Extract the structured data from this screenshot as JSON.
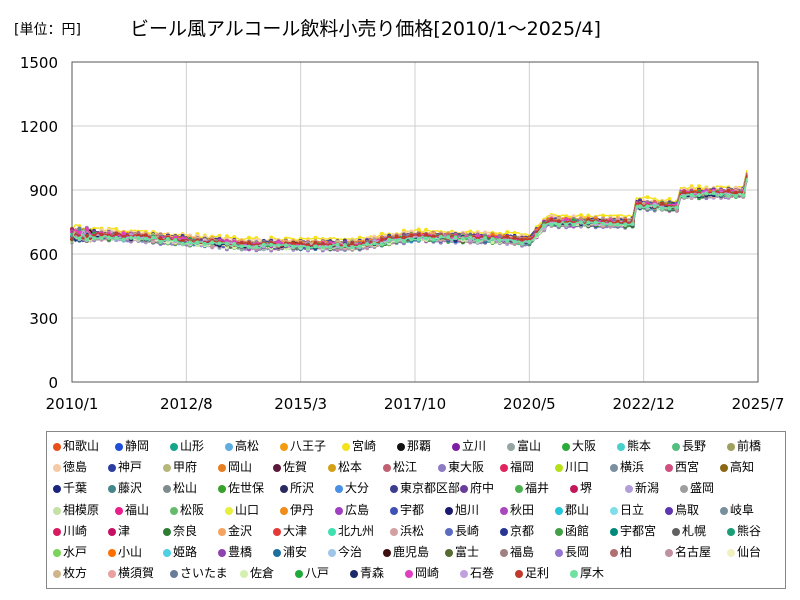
{
  "unit_label": "[単位：円]",
  "chart_title": "ビール風アルコール飲料小売り価格[2010/1～2025/4]",
  "chart_data": {
    "type": "line",
    "title": "ビール風アルコール飲料小売り価格[2010/1～2025/4]",
    "unit": "円",
    "xlabel": "",
    "ylabel": "",
    "x_range": [
      "2010-01",
      "2025-07"
    ],
    "x_ticks": [
      "2010/1",
      "2012/8",
      "2015/3",
      "2017/10",
      "2020/5",
      "2022/12",
      "2025/7"
    ],
    "ylim": [
      0,
      1500
    ],
    "y_ticks": [
      "0",
      "300",
      "600",
      "900",
      "1200",
      "1500"
    ],
    "grid": true,
    "legend_position": "bottom",
    "series_common_trend": [
      {
        "date": "2010-01",
        "value": 690
      },
      {
        "date": "2011-06",
        "value": 680
      },
      {
        "date": "2012-08",
        "value": 660
      },
      {
        "date": "2013-12",
        "value": 640
      },
      {
        "date": "2015-03",
        "value": 640
      },
      {
        "date": "2016-07",
        "value": 640
      },
      {
        "date": "2017-05",
        "value": 670
      },
      {
        "date": "2017-10",
        "value": 680
      },
      {
        "date": "2019-09",
        "value": 670
      },
      {
        "date": "2020-05",
        "value": 660
      },
      {
        "date": "2020-10",
        "value": 750
      },
      {
        "date": "2022-09",
        "value": 745
      },
      {
        "date": "2022-10",
        "value": 830
      },
      {
        "date": "2023-09",
        "value": 820
      },
      {
        "date": "2023-10",
        "value": 880
      },
      {
        "date": "2025-03",
        "value": 885
      },
      {
        "date": "2025-04",
        "value": 960
      }
    ],
    "series": [
      {
        "name": "和歌山",
        "color": "#e8501a",
        "offset": 10
      },
      {
        "name": "静岡",
        "color": "#1f4fd8",
        "offset": -5
      },
      {
        "name": "山形",
        "color": "#17a589",
        "offset": 2
      },
      {
        "name": "高松",
        "color": "#5dade2",
        "offset": -12
      },
      {
        "name": "八王子",
        "color": "#f39c12",
        "offset": 15
      },
      {
        "name": "宮崎",
        "color": "#f4e21a",
        "offset": 30
      },
      {
        "name": "那覇",
        "color": "#111111",
        "offset": 8
      },
      {
        "name": "立川",
        "color": "#7d1fa0",
        "offset": -3
      },
      {
        "name": "富山",
        "color": "#95a5a6",
        "offset": 0
      },
      {
        "name": "大阪",
        "color": "#2eaa3a",
        "offset": -8
      },
      {
        "name": "熊本",
        "color": "#48d1cc",
        "offset": 4
      },
      {
        "name": "長野",
        "color": "#52be80",
        "offset": -10
      },
      {
        "name": "前橋",
        "color": "#a0a060",
        "offset": 6
      },
      {
        "name": "徳島",
        "color": "#f5cba7",
        "offset": 20
      },
      {
        "name": "神戸",
        "color": "#2c3e9f",
        "offset": -2
      },
      {
        "name": "甲府",
        "color": "#b7b77a",
        "offset": 12
      },
      {
        "name": "岡山",
        "color": "#e67e22",
        "offset": -6
      },
      {
        "name": "佐賀",
        "color": "#5b1a3a",
        "offset": 3
      },
      {
        "name": "松本",
        "color": "#d4a017",
        "offset": 9
      },
      {
        "name": "松江",
        "color": "#c06070",
        "offset": -4
      },
      {
        "name": "東大阪",
        "color": "#8e7cc3",
        "offset": -15
      },
      {
        "name": "福岡",
        "color": "#e0245e",
        "offset": 1
      },
      {
        "name": "川口",
        "color": "#b6e01a",
        "offset": 5
      },
      {
        "name": "横浜",
        "color": "#7a8fa0",
        "offset": -9
      },
      {
        "name": "西宮",
        "color": "#d05080",
        "offset": 7
      },
      {
        "name": "高知",
        "color": "#8b6914",
        "offset": -1
      },
      {
        "name": "千葉",
        "color": "#1a237e",
        "offset": 11
      },
      {
        "name": "藤沢",
        "color": "#45868a",
        "offset": -7
      },
      {
        "name": "松山",
        "color": "#7f8c8d",
        "offset": 2
      },
      {
        "name": "佐世保",
        "color": "#3aa02e",
        "offset": -11
      },
      {
        "name": "所沢",
        "color": "#2a2a60",
        "offset": 6
      },
      {
        "name": "大分",
        "color": "#4a90e2",
        "offset": -3
      },
      {
        "name": "東京都区部",
        "color": "#3d3d8f",
        "offset": 14
      },
      {
        "name": "府中",
        "color": "#6a3d9a",
        "offset": 0
      },
      {
        "name": "福井",
        "color": "#4caf50",
        "offset": -6
      },
      {
        "name": "堺",
        "color": "#c2185b",
        "offset": 4
      },
      {
        "name": "新潟",
        "color": "#b39ddb",
        "offset": -13
      },
      {
        "name": "盛岡",
        "color": "#9e9e9e",
        "offset": 8
      },
      {
        "name": "相模原",
        "color": "#c5e1a5",
        "offset": -2
      },
      {
        "name": "福山",
        "color": "#e91e8c",
        "offset": 3
      },
      {
        "name": "松阪",
        "color": "#66bb6a",
        "offset": -8
      },
      {
        "name": "山口",
        "color": "#e6ee40",
        "offset": 5
      },
      {
        "name": "伊丹",
        "color": "#ef8c1a",
        "offset": -4
      },
      {
        "name": "広島",
        "color": "#a040c0",
        "offset": 10
      },
      {
        "name": "宇都",
        "color": "#3f51b5",
        "offset": -1
      },
      {
        "name": "旭川",
        "color": "#1a1a6e",
        "offset": 6
      },
      {
        "name": "秋田",
        "color": "#ab47bc",
        "offset": -10
      },
      {
        "name": "郡山",
        "color": "#26c6da",
        "offset": 2
      },
      {
        "name": "日立",
        "color": "#80deea",
        "offset": -5
      },
      {
        "name": "鳥取",
        "color": "#5e35b1",
        "offset": 9
      },
      {
        "name": "岐阜",
        "color": "#78909c",
        "offset": -3
      },
      {
        "name": "川崎",
        "color": "#d81b60",
        "offset": 1
      },
      {
        "name": "津",
        "color": "#c51162",
        "offset": 7
      },
      {
        "name": "奈良",
        "color": "#2e7d32",
        "offset": -9
      },
      {
        "name": "金沢",
        "color": "#f4a460",
        "offset": 12
      },
      {
        "name": "大津",
        "color": "#e53935",
        "offset": -2
      },
      {
        "name": "北九州",
        "color": "#40e0b0",
        "offset": 4
      },
      {
        "name": "浜松",
        "color": "#d2a0a0",
        "offset": -7
      },
      {
        "name": "長崎",
        "color": "#5c6bc0",
        "offset": 3
      },
      {
        "name": "京都",
        "color": "#283593",
        "offset": -4
      },
      {
        "name": "函館",
        "color": "#43a047",
        "offset": 8
      },
      {
        "name": "宇都宮",
        "color": "#00897b",
        "offset": -1
      },
      {
        "name": "札幌",
        "color": "#616161",
        "offset": 5
      },
      {
        "name": "熊谷",
        "color": "#1b9e77",
        "offset": -6
      },
      {
        "name": "水戸",
        "color": "#7bd45a",
        "offset": 2
      },
      {
        "name": "小山",
        "color": "#ff6f00",
        "offset": 9
      },
      {
        "name": "姫路",
        "color": "#4dd0e1",
        "offset": -3
      },
      {
        "name": "豊橋",
        "color": "#8e44ad",
        "offset": 6
      },
      {
        "name": "浦安",
        "color": "#1e6fa0",
        "offset": -8
      },
      {
        "name": "今治",
        "color": "#9fc5e8",
        "offset": 0
      },
      {
        "name": "鹿児島",
        "color": "#3e0f0f",
        "offset": 4
      },
      {
        "name": "富士",
        "color": "#556b2f",
        "offset": -5
      },
      {
        "name": "福島",
        "color": "#a08080",
        "offset": 7
      },
      {
        "name": "長岡",
        "color": "#9575cd",
        "offset": -2
      },
      {
        "name": "柏",
        "color": "#b07070",
        "offset": 3
      },
      {
        "name": "名古屋",
        "color": "#c08fa0",
        "offset": -10
      },
      {
        "name": "仙台",
        "color": "#f0f0c0",
        "offset": 1
      },
      {
        "name": "枚方",
        "color": "#d2b48c",
        "offset": 8
      },
      {
        "name": "横須賀",
        "color": "#e8a0a0",
        "offset": -4
      },
      {
        "name": "さいたま",
        "color": "#6a7a9a",
        "offset": 5
      },
      {
        "name": "佐倉",
        "color": "#d4f0b0",
        "offset": -7
      },
      {
        "name": "八戸",
        "color": "#1faa3a",
        "offset": 2
      },
      {
        "name": "青森",
        "color": "#1a2a6a",
        "offset": -3
      },
      {
        "name": "岡崎",
        "color": "#e040c0",
        "offset": 6
      },
      {
        "name": "石巻",
        "color": "#c0a0e0",
        "offset": -1
      },
      {
        "name": "足利",
        "color": "#c0392b",
        "offset": 4
      },
      {
        "name": "厚木",
        "color": "#6ee0a0",
        "offset": -5
      }
    ]
  }
}
